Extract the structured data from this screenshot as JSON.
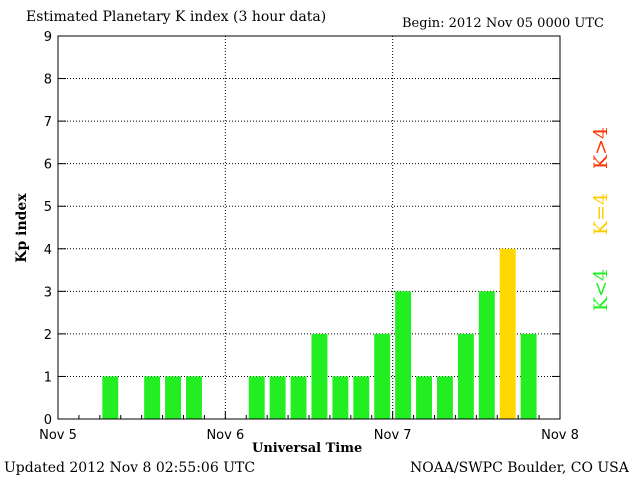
{
  "title": "Estimated Planetary K index (3 hour data)",
  "begin": "Begin:  2012 Nov 05 0000 UTC",
  "updated": "Updated 2012 Nov  8 02:55:06 UTC",
  "credit": "NOAA/SWPC Boulder, CO USA",
  "legend": {
    "gt4": "K>4",
    "eq4": "K=4",
    "lt4": "K<4",
    "colors": {
      "gt4": "#ff3300",
      "eq4": "#ffcc00",
      "lt4": "#22ee22"
    }
  },
  "chart_data": {
    "type": "bar",
    "title": "Estimated Planetary K index (3 hour data)",
    "xlabel": "Universal Time",
    "ylabel": "Kp index",
    "ylim": [
      0,
      9
    ],
    "yticks": [
      0,
      1,
      2,
      3,
      4,
      5,
      6,
      7,
      8,
      9
    ],
    "x_tick_labels": [
      "Nov 5",
      "Nov 6",
      "Nov 7",
      "Nov 8"
    ],
    "grid": true,
    "bar_colors": {
      "below4": "#22ee22",
      "equal4": "#ffd700",
      "above4": "#ff3300"
    },
    "values": [
      0,
      0,
      1,
      0,
      1,
      1,
      1,
      0,
      0,
      1,
      1,
      1,
      2,
      1,
      1,
      2,
      3,
      1,
      1,
      2,
      3,
      4,
      2
    ]
  }
}
